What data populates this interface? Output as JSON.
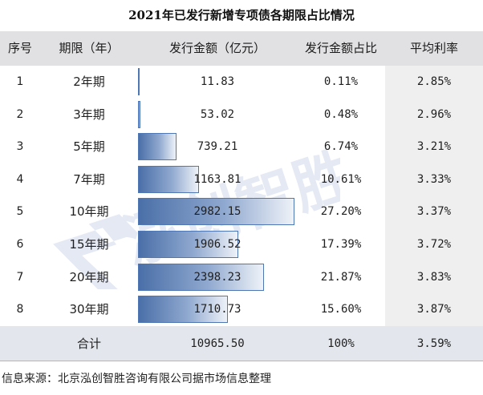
{
  "title": "2021年已发行新增专项债各期限占比情况",
  "columns": [
    "序号",
    "期限（年）",
    "发行金额（亿元）",
    "发行金额占比",
    "平均利率"
  ],
  "rows": [
    {
      "no": "1",
      "term": "2年期",
      "amount": "11.83",
      "share": "0.11%",
      "rate": "2.85%",
      "amount_value": 11.83
    },
    {
      "no": "2",
      "term": "3年期",
      "amount": "53.02",
      "share": "0.48%",
      "rate": "2.96%",
      "amount_value": 53.02
    },
    {
      "no": "3",
      "term": "5年期",
      "amount": "739.21",
      "share": "6.74%",
      "rate": "3.21%",
      "amount_value": 739.21
    },
    {
      "no": "4",
      "term": "7年期",
      "amount": "1163.81",
      "share": "10.61%",
      "rate": "3.33%",
      "amount_value": 1163.81
    },
    {
      "no": "5",
      "term": "10年期",
      "amount": "2982.15",
      "share": "27.20%",
      "rate": "3.37%",
      "amount_value": 2982.15
    },
    {
      "no": "6",
      "term": "15年期",
      "amount": "1906.52",
      "share": "17.39%",
      "rate": "3.72%",
      "amount_value": 1906.52
    },
    {
      "no": "7",
      "term": "20年期",
      "amount": "2398.23",
      "share": "21.87%",
      "rate": "3.83%",
      "amount_value": 2398.23
    },
    {
      "no": "8",
      "term": "30年期",
      "amount": "1710.73",
      "share": "15.60%",
      "rate": "3.87%",
      "amount_value": 1710.73
    }
  ],
  "total": {
    "label": "合计",
    "amount": "10965.50",
    "share": "100%",
    "rate": "3.59%"
  },
  "bar_scale_max": 2982.15,
  "watermark": "泓创智胜",
  "source": "信息来源：北京泓创智胜咨询有限公司据市场信息整理",
  "colors": {
    "header_bg": "#e1e1e3",
    "total_bg": "#e3e6ec",
    "rate_col_bg": "#efefef",
    "bar_border": "#4f77b3",
    "bar_dark": "#4a6fa8",
    "watermark": "#2d56a6"
  }
}
